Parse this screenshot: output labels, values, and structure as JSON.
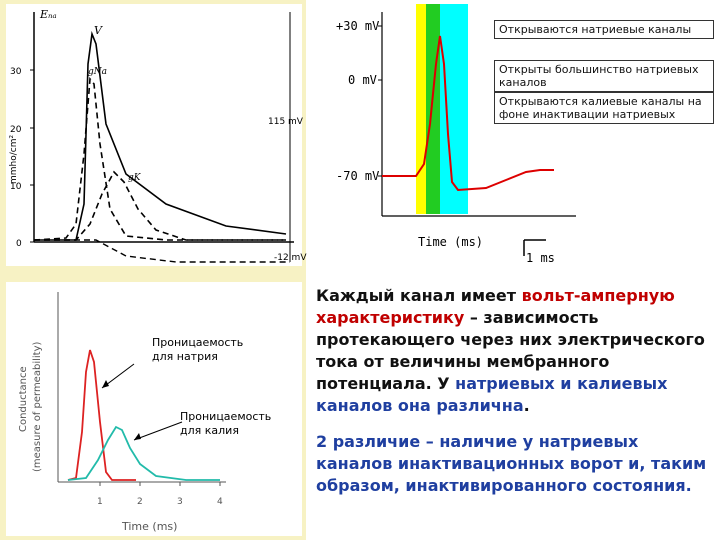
{
  "panel_a": {
    "ylabel": "mmho/cm²",
    "ek_label": "Eₙₐ",
    "v_label": "V",
    "gna_label": "gNa",
    "gk_label": "gK",
    "right_top": "115 mV",
    "right_bottom": "-12 mV",
    "y_ticks": [
      "30",
      "20",
      "10",
      "0"
    ]
  },
  "panel_b": {
    "y_labels": [
      "+30 mV",
      "0 mV",
      "-70 mV"
    ],
    "x_label": "Time (ms)",
    "scale_label": "1 ms",
    "box1": "Открываются натриевые каналы",
    "box2": "Открыты большинство натриевых каналов",
    "box3": "Открываются калиевые каналы на фоне инактивации натриевых",
    "colors": {
      "yellow": "#ffff00",
      "green": "#22cc22",
      "cyan": "#00ffff",
      "trace": "#dd0000"
    }
  },
  "panel_c": {
    "ylabel_line1": "Conductance",
    "ylabel_line2": "(measure of permeability)",
    "x_label": "Time (ms)",
    "x_ticks": [
      "1",
      "2",
      "3",
      "4"
    ],
    "label_na": "Проницаемость для натрия",
    "label_k": "Проницаемость для калия",
    "colors": {
      "na": "#dd2222",
      "k": "#22bbaa"
    }
  },
  "text": {
    "p1_a": "Каждый канал имеет ",
    "p1_b": "вольт-амперную характеристику",
    "p1_c": " – зависимость протекающего через них электрического тока от величины мембранного потенциала. У ",
    "p1_d": "натриевых и калиевых каналов она различна",
    "p1_e": ".",
    "p2": "2 различие – наличие у натриевых каналов инактивационных ворот и, таким образом, инактивированного состояния."
  }
}
